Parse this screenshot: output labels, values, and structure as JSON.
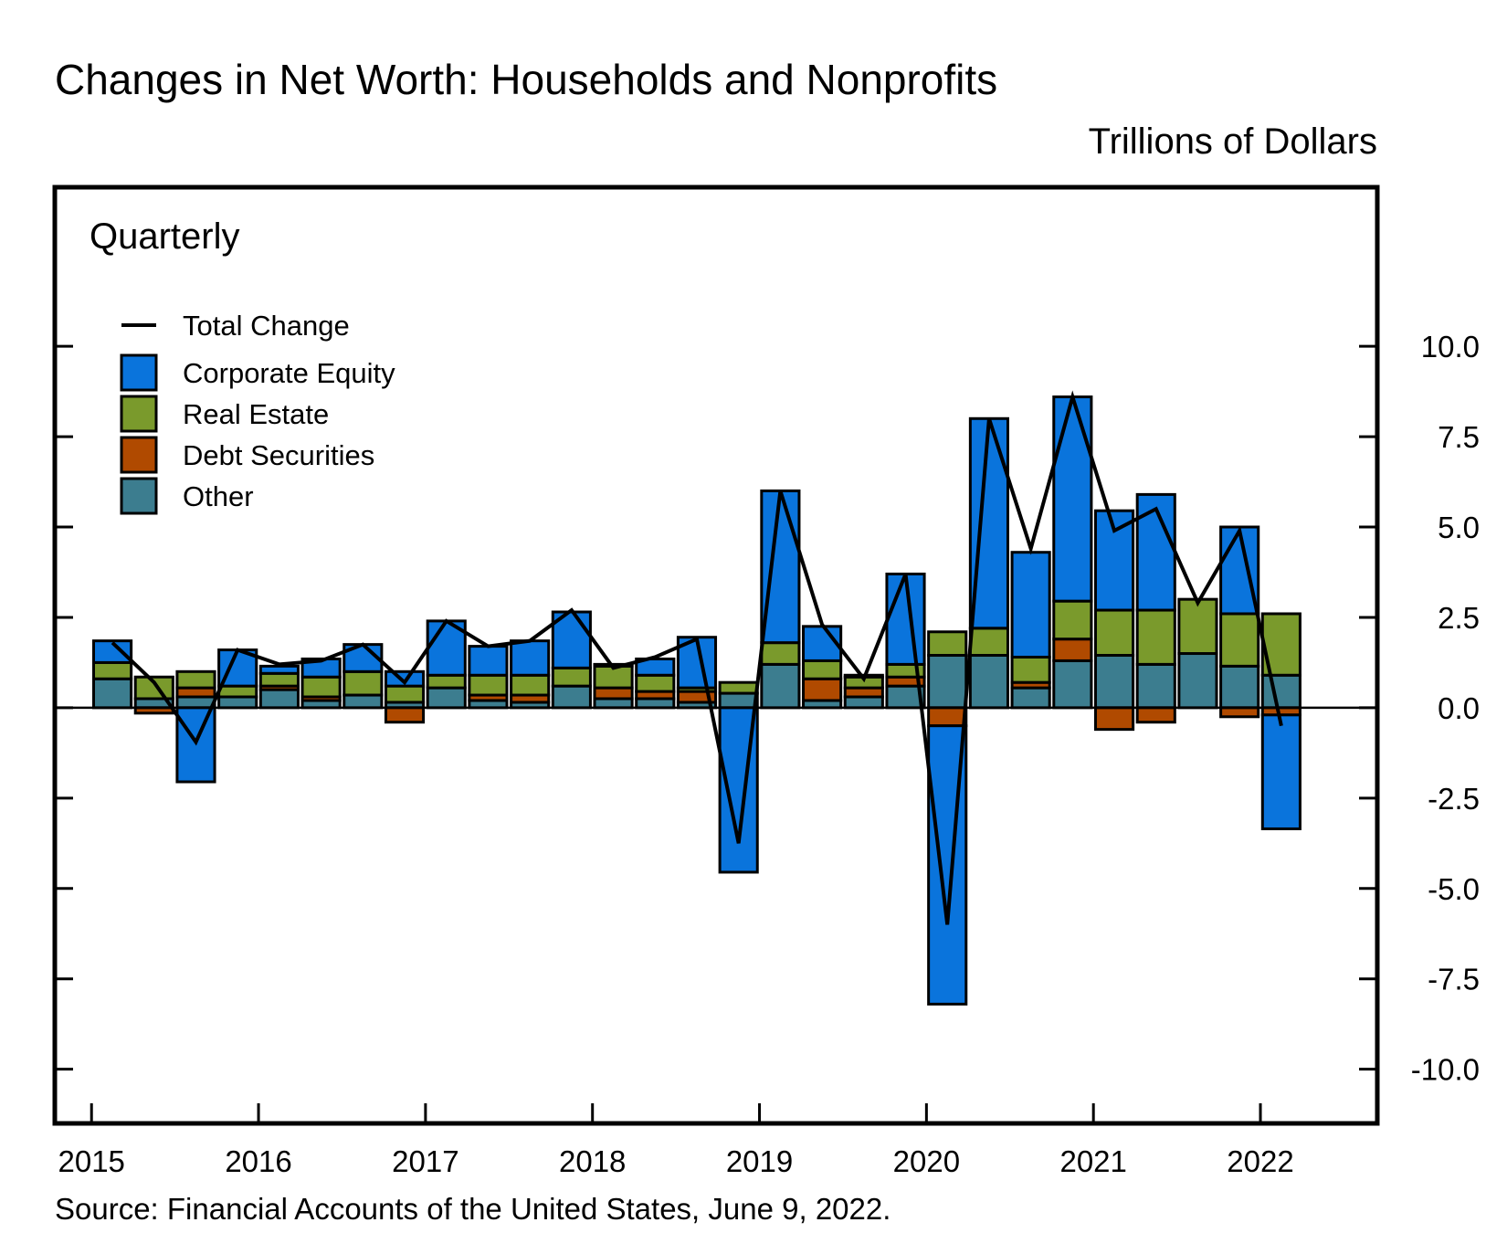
{
  "chart_data": {
    "type": "bar",
    "stacked": true,
    "title": "Changes in Net Worth: Households and Nonprofits",
    "units": "Trillions of Dollars",
    "panel_label": "Quarterly",
    "source": "Source: Financial Accounts of the United States, June 9, 2022.",
    "ylim": [
      -11.5,
      14.4
    ],
    "xlim": [
      2014.78,
      2022.7
    ],
    "y_ticks": [
      10,
      7.5,
      5,
      2.5,
      0,
      -2.5,
      -5,
      -7.5,
      -10
    ],
    "y_tick_labels": [
      "10.0",
      "7.5",
      "5.0",
      "2.5",
      "0.0",
      "-2.5",
      "-5.0",
      "-7.5",
      "-10.0"
    ],
    "x_ticks": [
      2015,
      2016,
      2017,
      2018,
      2019,
      2020,
      2021,
      2022
    ],
    "x_tick_labels": [
      "2015",
      "2016",
      "2017",
      "2018",
      "2019",
      "2020",
      "2021",
      "2022"
    ],
    "categories": [
      "2015Q1",
      "2015Q2",
      "2015Q3",
      "2015Q4",
      "2016Q1",
      "2016Q2",
      "2016Q3",
      "2016Q4",
      "2017Q1",
      "2017Q2",
      "2017Q3",
      "2017Q4",
      "2018Q1",
      "2018Q2",
      "2018Q3",
      "2018Q4",
      "2019Q1",
      "2019Q2",
      "2019Q3",
      "2019Q4",
      "2020Q1",
      "2020Q2",
      "2020Q3",
      "2020Q4",
      "2021Q1",
      "2021Q2",
      "2021Q3",
      "2021Q4",
      "2022Q1"
    ],
    "x": [
      2015.25,
      2015.5,
      2015.75,
      2016.0,
      2016.25,
      2016.5,
      2016.75,
      2017.0,
      2017.25,
      2017.5,
      2017.75,
      2018.0,
      2018.25,
      2018.5,
      2018.75,
      2019.0,
      2019.25,
      2019.5,
      2019.75,
      2020.0,
      2020.25,
      2020.5,
      2020.75,
      2021.0,
      2021.25,
      2021.5,
      2021.75,
      2022.0,
      2022.25
    ],
    "series": [
      {
        "name": "Other",
        "color": "#3c7d8f",
        "values": [
          0.8,
          0.25,
          0.3,
          0.3,
          0.5,
          0.2,
          0.35,
          0.15,
          0.55,
          0.2,
          0.15,
          0.6,
          0.25,
          0.25,
          0.15,
          0.4,
          1.2,
          0.2,
          0.3,
          0.6,
          1.45,
          1.45,
          0.55,
          1.3,
          1.45,
          1.2,
          1.5,
          1.15,
          0.9
        ]
      },
      {
        "name": "Debt Securities",
        "color": "#b04a00",
        "values": [
          0.0,
          -0.15,
          0.25,
          0.0,
          0.1,
          0.1,
          0.0,
          -0.4,
          0.0,
          0.15,
          0.2,
          0.0,
          0.3,
          0.2,
          0.3,
          0.0,
          0.0,
          0.6,
          0.25,
          0.25,
          -0.5,
          0.0,
          0.15,
          0.6,
          -0.6,
          -0.4,
          0.0,
          -0.25,
          -0.2
        ]
      },
      {
        "name": "Real Estate",
        "color": "#7a9a2c",
        "values": [
          0.45,
          0.6,
          0.45,
          0.3,
          0.35,
          0.55,
          0.65,
          0.45,
          0.35,
          0.55,
          0.55,
          0.5,
          0.6,
          0.45,
          0.1,
          0.3,
          0.6,
          0.5,
          0.3,
          0.35,
          0.65,
          0.75,
          0.7,
          1.05,
          1.25,
          1.5,
          1.5,
          1.45,
          1.7
        ]
      },
      {
        "name": "Corporate Equity",
        "color": "#0a74dc",
        "values": [
          0.6,
          0.0,
          -2.05,
          1.0,
          0.2,
          0.5,
          0.75,
          0.4,
          1.5,
          0.8,
          0.95,
          1.55,
          0.05,
          0.45,
          1.4,
          -4.55,
          4.2,
          0.95,
          0.05,
          2.5,
          -7.7,
          5.8,
          2.9,
          5.65,
          2.75,
          3.2,
          0.0,
          2.4,
          -3.15
        ]
      }
    ],
    "total_change": {
      "name": "Total Change",
      "color": "#000000",
      "values": [
        1.8,
        0.7,
        -0.95,
        1.6,
        1.2,
        1.3,
        1.75,
        0.7,
        2.4,
        1.7,
        1.85,
        2.7,
        1.1,
        1.4,
        1.9,
        -3.75,
        6.0,
        2.3,
        0.8,
        3.7,
        -6.0,
        8.0,
        4.4,
        8.6,
        4.9,
        5.5,
        2.9,
        4.9,
        -0.5
      ]
    },
    "legend": [
      {
        "label": "Total Change",
        "kind": "line",
        "color": "#000000"
      },
      {
        "label": "Corporate Equity",
        "kind": "box",
        "color": "#0a74dc"
      },
      {
        "label": "Real Estate",
        "kind": "box",
        "color": "#7a9a2c"
      },
      {
        "label": "Debt Securities",
        "kind": "box",
        "color": "#b04a00"
      },
      {
        "label": "Other",
        "kind": "box",
        "color": "#3c7d8f"
      }
    ]
  }
}
